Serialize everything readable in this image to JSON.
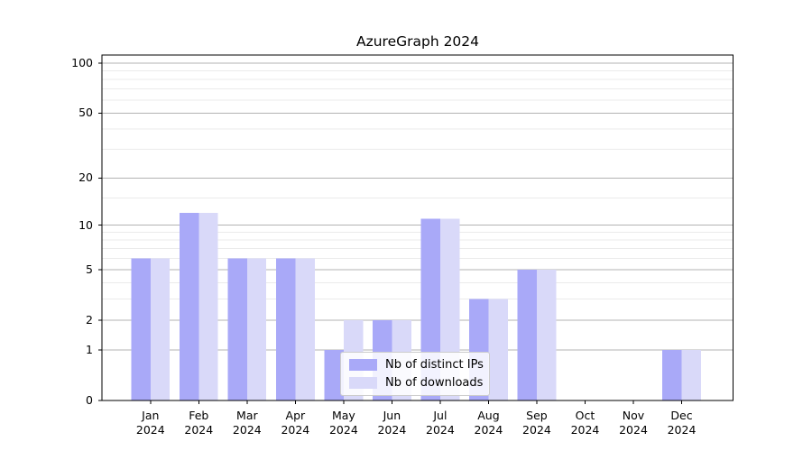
{
  "title": "AzureGraph 2024",
  "chart_data": {
    "type": "bar",
    "title": "AzureGraph 2024",
    "categories": [
      "Jan",
      "Feb",
      "Mar",
      "Apr",
      "May",
      "Jun",
      "Jul",
      "Aug",
      "Sep",
      "Oct",
      "Nov",
      "Dec"
    ],
    "year_label": "2024",
    "series": [
      {
        "name": "Nb of distinct IPs",
        "color": "#a9a9f8",
        "values": [
          6,
          12,
          6,
          6,
          1,
          2,
          11,
          3,
          5,
          0,
          0,
          1
        ]
      },
      {
        "name": "Nb of downloads",
        "color": "#d9d9f9",
        "values": [
          6,
          12,
          6,
          6,
          2,
          2,
          11,
          3,
          5,
          0,
          0,
          1
        ]
      }
    ],
    "yscale": "log1p",
    "y_axis": {
      "major_ticks": [
        0,
        1,
        2,
        5,
        10,
        20,
        50,
        100
      ],
      "minor_gridlines": [
        3,
        4,
        6,
        7,
        8,
        9,
        15,
        30,
        40,
        60,
        70,
        80,
        90
      ],
      "max": 100
    },
    "legend": {
      "position": "lower center"
    },
    "grid": true,
    "colors": {
      "major_grid": "#b3b3b3",
      "minor_grid": "#ebebeb",
      "spine": "#000000",
      "text": "#000000",
      "background": "#ffffff"
    }
  }
}
